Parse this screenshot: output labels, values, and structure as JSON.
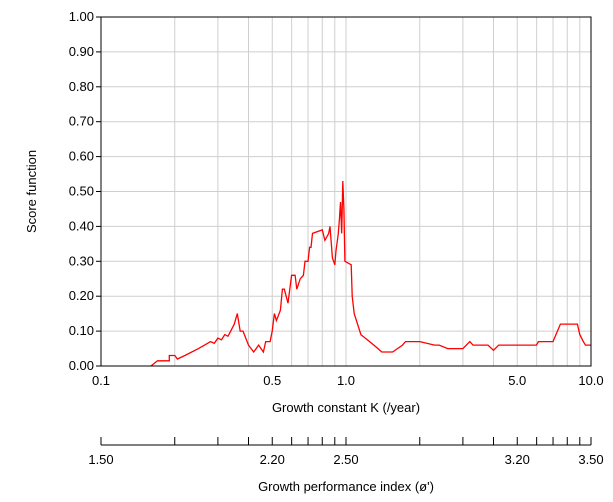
{
  "chart_data": {
    "type": "line",
    "xscale": "log",
    "xlim": [
      0.1,
      10.0
    ],
    "ylim": [
      0.0,
      1.0
    ],
    "xlabel": "Growth constant K (/year)",
    "ylabel": "Score function",
    "grid": true,
    "line_color": "#ff0000",
    "x_tick_labels": [
      {
        "value": 0.1,
        "label": "0.1"
      },
      {
        "value": 0.5,
        "label": "0.5"
      },
      {
        "value": 1.0,
        "label": "1.0"
      },
      {
        "value": 5.0,
        "label": "5.0"
      },
      {
        "value": 10.0,
        "label": "10.0"
      }
    ],
    "x_gridlines": [
      0.2,
      0.3,
      0.4,
      0.5,
      0.6,
      0.7,
      0.8,
      0.9,
      1.0,
      2.0,
      3.0,
      4.0,
      5.0,
      6.0,
      7.0,
      8.0,
      9.0
    ],
    "y_ticks": [
      {
        "value": 0.0,
        "label": "0.00"
      },
      {
        "value": 0.1,
        "label": "0.10"
      },
      {
        "value": 0.2,
        "label": "0.20"
      },
      {
        "value": 0.3,
        "label": "0.30"
      },
      {
        "value": 0.4,
        "label": "0.40"
      },
      {
        "value": 0.5,
        "label": "0.50"
      },
      {
        "value": 0.6,
        "label": "0.60"
      },
      {
        "value": 0.7,
        "label": "0.70"
      },
      {
        "value": 0.8,
        "label": "0.80"
      },
      {
        "value": 0.9,
        "label": "0.90"
      },
      {
        "value": 1.0,
        "label": "1.00"
      }
    ],
    "series": [
      {
        "points": [
          [
            0.16,
            0.0
          ],
          [
            0.17,
            0.015
          ],
          [
            0.19,
            0.015
          ],
          [
            0.19,
            0.03
          ],
          [
            0.2,
            0.03
          ],
          [
            0.205,
            0.02
          ],
          [
            0.22,
            0.03
          ],
          [
            0.25,
            0.05
          ],
          [
            0.28,
            0.07
          ],
          [
            0.29,
            0.065
          ],
          [
            0.3,
            0.08
          ],
          [
            0.31,
            0.075
          ],
          [
            0.32,
            0.09
          ],
          [
            0.33,
            0.085
          ],
          [
            0.35,
            0.12
          ],
          [
            0.36,
            0.15
          ],
          [
            0.37,
            0.1
          ],
          [
            0.38,
            0.1
          ],
          [
            0.4,
            0.06
          ],
          [
            0.42,
            0.04
          ],
          [
            0.44,
            0.06
          ],
          [
            0.46,
            0.04
          ],
          [
            0.47,
            0.07
          ],
          [
            0.49,
            0.07
          ],
          [
            0.5,
            0.1
          ],
          [
            0.51,
            0.15
          ],
          [
            0.52,
            0.13
          ],
          [
            0.54,
            0.16
          ],
          [
            0.55,
            0.22
          ],
          [
            0.56,
            0.22
          ],
          [
            0.58,
            0.18
          ],
          [
            0.6,
            0.26
          ],
          [
            0.62,
            0.26
          ],
          [
            0.63,
            0.22
          ],
          [
            0.65,
            0.25
          ],
          [
            0.67,
            0.26
          ],
          [
            0.68,
            0.3
          ],
          [
            0.7,
            0.3
          ],
          [
            0.71,
            0.34
          ],
          [
            0.72,
            0.34
          ],
          [
            0.73,
            0.38
          ],
          [
            0.8,
            0.39
          ],
          [
            0.82,
            0.36
          ],
          [
            0.85,
            0.38
          ],
          [
            0.86,
            0.4
          ],
          [
            0.88,
            0.31
          ],
          [
            0.9,
            0.29
          ],
          [
            0.91,
            0.33
          ],
          [
            0.93,
            0.38
          ],
          [
            0.94,
            0.42
          ],
          [
            0.95,
            0.47
          ],
          [
            0.96,
            0.38
          ],
          [
            0.97,
            0.53
          ],
          [
            0.98,
            0.45
          ],
          [
            0.99,
            0.3
          ],
          [
            1.05,
            0.29
          ],
          [
            1.06,
            0.2
          ],
          [
            1.08,
            0.15
          ],
          [
            1.15,
            0.09
          ],
          [
            1.3,
            0.06
          ],
          [
            1.4,
            0.04
          ],
          [
            1.55,
            0.04
          ],
          [
            1.7,
            0.06
          ],
          [
            1.75,
            0.07
          ],
          [
            2.0,
            0.07
          ],
          [
            2.3,
            0.06
          ],
          [
            2.4,
            0.06
          ],
          [
            2.6,
            0.05
          ],
          [
            3.0,
            0.05
          ],
          [
            3.2,
            0.07
          ],
          [
            3.3,
            0.06
          ],
          [
            3.8,
            0.06
          ],
          [
            4.0,
            0.045
          ],
          [
            4.2,
            0.06
          ],
          [
            6.0,
            0.06
          ],
          [
            6.1,
            0.07
          ],
          [
            7.0,
            0.07
          ],
          [
            7.5,
            0.12
          ],
          [
            8.8,
            0.12
          ],
          [
            9.0,
            0.09
          ],
          [
            9.3,
            0.07
          ],
          [
            9.5,
            0.06
          ],
          [
            10.0,
            0.06
          ]
        ]
      }
    ],
    "secondary_axis": {
      "label": "Growth performance index (ø')",
      "tick_labels": [
        {
          "value": 0.1,
          "label": "1.50"
        },
        {
          "value": 0.5,
          "label": "2.20"
        },
        {
          "value": 1.0,
          "label": "2.50"
        },
        {
          "value": 5.0,
          "label": "3.20"
        },
        {
          "value": 10.0,
          "label": "3.50"
        }
      ],
      "ticks": [
        0.1,
        0.2,
        0.3,
        0.4,
        0.5,
        0.6,
        0.7,
        0.8,
        0.9,
        1.0,
        2.0,
        3.0,
        4.0,
        5.0,
        6.0,
        7.0,
        8.0,
        9.0,
        10.0
      ]
    }
  }
}
